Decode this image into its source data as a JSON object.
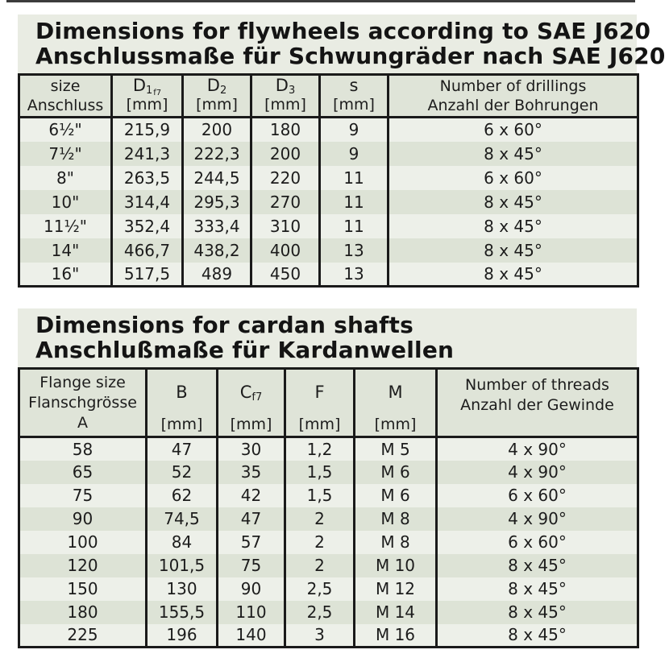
{
  "colors": {
    "title_bg": "#e9ece3",
    "header_bg": "#dfe4d8",
    "row_light": "#edf0e9",
    "row_dark": "#dde3d6",
    "border": "#1a1a1a",
    "text": "#1c1c1c"
  },
  "sections": {
    "flywheels": {
      "title_en": "Dimensions for flywheels according to SAE J620",
      "title_de": "Anschlussmaße für Schwungräder nach SAE J620",
      "headers": {
        "size": {
          "line1": "size",
          "line2": "Anschluss"
        },
        "d1": {
          "sym": "D",
          "sub": "1",
          "subsub": "f7",
          "unit": "[mm]"
        },
        "d2": {
          "sym": "D",
          "sub": "2",
          "unit": "[mm]"
        },
        "d3": {
          "sym": "D",
          "sub": "3",
          "unit": "[mm]"
        },
        "s": {
          "sym": "s",
          "unit": "[mm]"
        },
        "drillings": {
          "line1": "Number of drillings",
          "line2": "Anzahl der Bohrungen"
        }
      },
      "rows": [
        [
          "6½\"",
          "215,9",
          "200",
          "180",
          "9",
          "6 x 60°"
        ],
        [
          "7½\"",
          "241,3",
          "222,3",
          "200",
          "9",
          "8 x 45°"
        ],
        [
          "8\"",
          "263,5",
          "244,5",
          "220",
          "11",
          "6 x 60°"
        ],
        [
          "10\"",
          "314,4",
          "295,3",
          "270",
          "11",
          "8 x 45°"
        ],
        [
          "11½\"",
          "352,4",
          "333,4",
          "310",
          "11",
          "8 x 45°"
        ],
        [
          "14\"",
          "466,7",
          "438,2",
          "400",
          "13",
          "8 x 45°"
        ],
        [
          "16\"",
          "517,5",
          "489",
          "450",
          "13",
          "8 x 45°"
        ]
      ]
    },
    "cardan": {
      "title_en": "Dimensions for cardan shafts",
      "title_de": "Anschlußmaße für Kardanwellen",
      "headers": {
        "flange": {
          "line1": "Flange size",
          "line2": "Flanschgrösse",
          "line3": "A"
        },
        "b": {
          "sym": "B",
          "unit": "[mm]"
        },
        "c": {
          "sym": "C",
          "sub": "f7",
          "unit": "[mm]"
        },
        "f": {
          "sym": "F",
          "unit": "[mm]"
        },
        "m": {
          "sym": "M",
          "unit": "[mm]"
        },
        "threads": {
          "line1": "Number of threads",
          "line2": "Anzahl der Gewinde"
        }
      },
      "rows": [
        [
          "58",
          "47",
          "30",
          "1,2",
          "M 5",
          "4 x 90°"
        ],
        [
          "65",
          "52",
          "35",
          "1,5",
          "M 6",
          "4 x 90°"
        ],
        [
          "75",
          "62",
          "42",
          "1,5",
          "M 6",
          "6 x 60°"
        ],
        [
          "90",
          "74,5",
          "47",
          "2",
          "M 8",
          "4 x 90°"
        ],
        [
          "100",
          "84",
          "57",
          "2",
          "M 8",
          "6 x 60°"
        ],
        [
          "120",
          "101,5",
          "75",
          "2",
          "M 10",
          "8 x 45°"
        ],
        [
          "150",
          "130",
          "90",
          "2,5",
          "M 12",
          "8 x 45°"
        ],
        [
          "180",
          "155,5",
          "110",
          "2,5",
          "M 14",
          "8 x 45°"
        ],
        [
          "225",
          "196",
          "140",
          "3",
          "M 16",
          "8 x 45°"
        ]
      ]
    }
  }
}
